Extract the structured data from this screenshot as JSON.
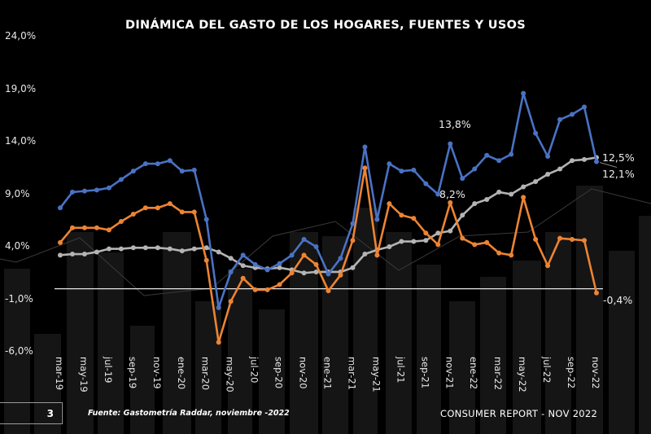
{
  "chart_data": {
    "type": "line",
    "title": "DINÁMICA DEL GASTO DE LOS HOGARES, FUENTES Y USOS",
    "xlabel": "",
    "ylabel": "",
    "ylim": [
      -6,
      24
    ],
    "yticks": [
      -6,
      -1,
      4,
      9,
      14,
      19,
      24
    ],
    "ytick_labels": [
      "-6,0%",
      "-1,0%",
      "4,0%",
      "9,0%",
      "14,0%",
      "19,0%",
      "24,0%"
    ],
    "x": [
      "mar-19",
      "abr-19",
      "may-19",
      "jun-19",
      "jul-19",
      "ago-19",
      "sep-19",
      "oct-19",
      "nov-19",
      "dic-19",
      "ene-20",
      "feb-20",
      "mar-20",
      "abr-20",
      "may-20",
      "jun-20",
      "jul-20",
      "ago-20",
      "sep-20",
      "oct-20",
      "nov-20",
      "dic-20",
      "ene-21",
      "feb-21",
      "mar-21",
      "abr-21",
      "may-21",
      "jun-21",
      "jul-21",
      "ago-21",
      "sep-21",
      "oct-21",
      "nov-21",
      "dic-21",
      "ene-22",
      "feb-22",
      "mar-22",
      "abr-22",
      "may-22",
      "jun-22",
      "jul-22",
      "ago-22",
      "sep-22",
      "oct-22",
      "nov-22"
    ],
    "xtick_labels": [
      "mar-19",
      "may-19",
      "jul-19",
      "sep-19",
      "nov-19",
      "ene-20",
      "mar-20",
      "may-20",
      "jul-20",
      "sep-20",
      "nov-20",
      "ene-21",
      "mar-21",
      "may-21",
      "jul-21",
      "sep-21",
      "nov-21",
      "ene-22",
      "mar-22",
      "may-22",
      "jul-22",
      "sep-22",
      "nov-22"
    ],
    "grid": false,
    "legend": "none",
    "series": [
      {
        "name": "blue",
        "color": "#4a72c4",
        "values": [
          7.7,
          9.2,
          9.3,
          9.4,
          9.6,
          10.4,
          11.2,
          11.9,
          11.9,
          12.2,
          11.2,
          11.3,
          6.6,
          -1.8,
          1.6,
          3.2,
          2.3,
          1.8,
          2.4,
          3.2,
          4.7,
          4.0,
          1.4,
          2.9,
          6.2,
          13.5,
          6.6,
          11.9,
          11.2,
          11.3,
          10.0,
          9.0,
          13.8,
          10.5,
          11.4,
          12.7,
          12.2,
          12.8,
          18.6,
          14.8,
          12.6,
          16.1,
          16.6,
          17.3,
          12.1
        ]
      },
      {
        "name": "orange",
        "color": "#ed8433",
        "values": [
          4.4,
          5.8,
          5.8,
          5.8,
          5.6,
          6.4,
          7.1,
          7.7,
          7.7,
          8.1,
          7.3,
          7.3,
          2.7,
          -5.1,
          -1.2,
          1.0,
          -0.1,
          -0.1,
          0.4,
          1.5,
          3.2,
          2.3,
          -0.2,
          1.3,
          4.6,
          11.5,
          3.2,
          8.1,
          7.0,
          6.7,
          5.3,
          4.2,
          8.2,
          4.8,
          4.2,
          4.4,
          3.4,
          3.2,
          8.7,
          4.7,
          2.2,
          4.8,
          4.7,
          4.6,
          -0.4
        ]
      },
      {
        "name": "gray",
        "color": "#b4b4b4",
        "values": [
          3.2,
          3.3,
          3.3,
          3.5,
          3.8,
          3.8,
          3.9,
          3.9,
          3.9,
          3.8,
          3.6,
          3.8,
          3.9,
          3.5,
          2.9,
          2.2,
          2.0,
          1.9,
          2.0,
          1.8,
          1.5,
          1.6,
          1.6,
          1.6,
          2.0,
          3.3,
          3.7,
          4.0,
          4.5,
          4.5,
          4.6,
          5.3,
          5.5,
          7.0,
          8.1,
          8.5,
          9.2,
          9.0,
          9.7,
          10.2,
          10.9,
          11.4,
          12.2,
          12.3,
          12.5
        ]
      }
    ],
    "annotations": [
      {
        "text": "13,8%",
        "series": "blue",
        "x": "nov-21"
      },
      {
        "text": "8,2%",
        "series": "orange",
        "x": "nov-21"
      },
      {
        "text": "12,5%",
        "series": "gray",
        "x": "nov-22"
      },
      {
        "text": "12,1%",
        "series": "blue",
        "x": "nov-22"
      },
      {
        "text": "-0,4%",
        "series": "orange",
        "x": "nov-22"
      }
    ]
  },
  "footer": {
    "page_number": "3",
    "source": "Fuente: Gastometría Raddar, noviembre  -2022",
    "report": "CONSUMER REPORT - NOV 2022"
  }
}
